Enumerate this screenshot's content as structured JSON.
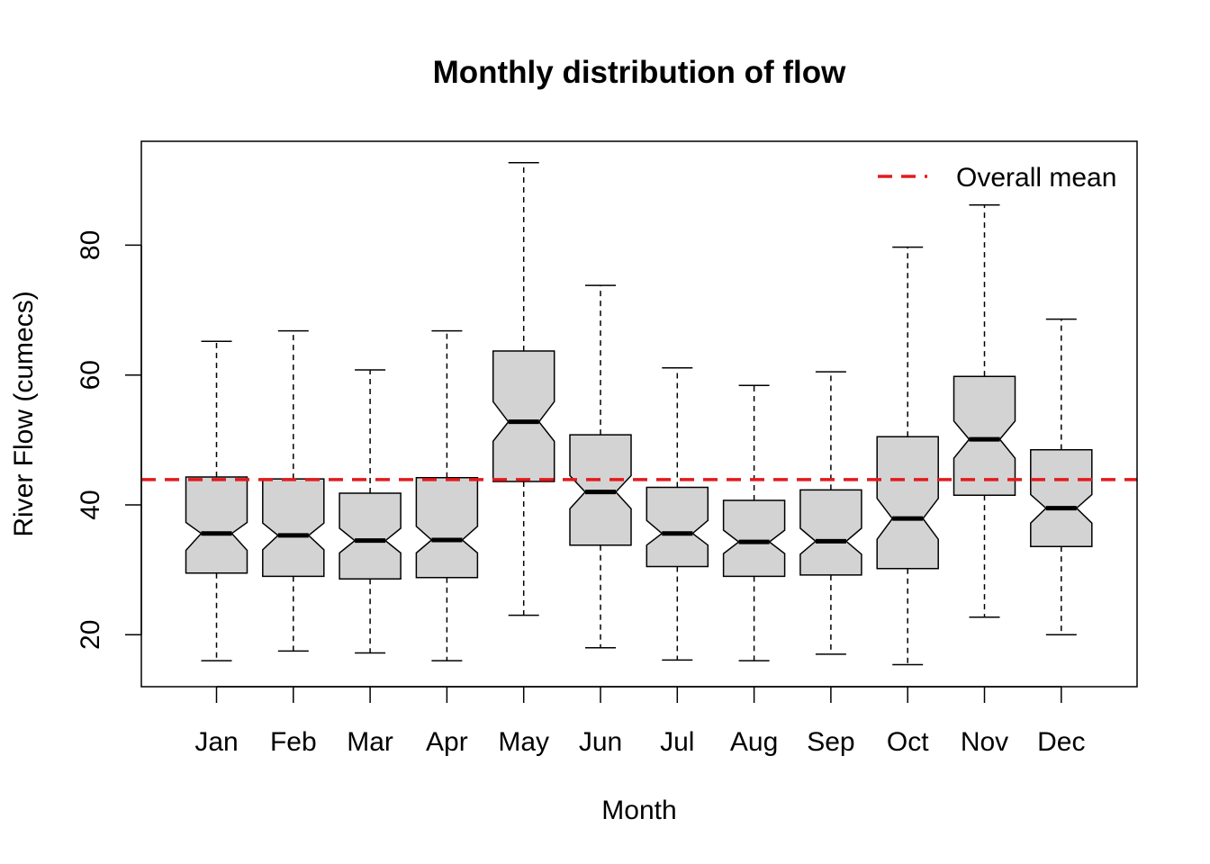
{
  "chart_data": {
    "type": "boxplot",
    "title": "Monthly distribution of flow",
    "xlabel": "Month",
    "ylabel": "River Flow (cumecs)",
    "ylim": [
      12,
      96
    ],
    "yticks": [
      20,
      40,
      60,
      80
    ],
    "categories": [
      "Jan",
      "Feb",
      "Mar",
      "Apr",
      "May",
      "Jun",
      "Jul",
      "Aug",
      "Sep",
      "Oct",
      "Nov",
      "Dec"
    ],
    "boxes": [
      {
        "min": 16.0,
        "q1": 29.5,
        "median": 35.6,
        "q3": 44.3,
        "max": 65.2,
        "notch_low": 33.0,
        "notch_high": 37.3
      },
      {
        "min": 17.5,
        "q1": 29.0,
        "median": 35.3,
        "q3": 44.0,
        "max": 66.8,
        "notch_low": 33.1,
        "notch_high": 37.2
      },
      {
        "min": 17.2,
        "q1": 28.6,
        "median": 34.5,
        "q3": 41.8,
        "max": 60.8,
        "notch_low": 32.6,
        "notch_high": 36.4
      },
      {
        "min": 16.0,
        "q1": 28.8,
        "median": 34.6,
        "q3": 44.2,
        "max": 66.8,
        "notch_low": 32.6,
        "notch_high": 36.7
      },
      {
        "min": 23.0,
        "q1": 43.6,
        "median": 52.8,
        "q3": 63.7,
        "max": 92.7,
        "notch_low": 49.8,
        "notch_high": 55.9
      },
      {
        "min": 18.0,
        "q1": 33.8,
        "median": 42.0,
        "q3": 50.8,
        "max": 73.8,
        "notch_low": 39.4,
        "notch_high": 44.5
      },
      {
        "min": 16.1,
        "q1": 30.5,
        "median": 35.6,
        "q3": 42.7,
        "max": 61.1,
        "notch_low": 33.8,
        "notch_high": 37.6
      },
      {
        "min": 16.0,
        "q1": 29.0,
        "median": 34.3,
        "q3": 40.7,
        "max": 58.4,
        "notch_low": 32.5,
        "notch_high": 36.1
      },
      {
        "min": 17.0,
        "q1": 29.2,
        "median": 34.4,
        "q3": 42.3,
        "max": 60.5,
        "notch_low": 32.4,
        "notch_high": 36.4
      },
      {
        "min": 15.4,
        "q1": 30.2,
        "median": 37.9,
        "q3": 50.5,
        "max": 79.7,
        "notch_low": 34.7,
        "notch_high": 41.0
      },
      {
        "min": 22.7,
        "q1": 41.5,
        "median": 50.1,
        "q3": 59.8,
        "max": 86.2,
        "notch_low": 47.2,
        "notch_high": 52.9
      },
      {
        "min": 20.0,
        "q1": 33.6,
        "median": 39.5,
        "q3": 48.5,
        "max": 68.6,
        "notch_low": 37.2,
        "notch_high": 41.6
      }
    ],
    "reference_line": {
      "label": "Overall mean",
      "value": 43.9,
      "color": "#e31a1c",
      "style": "dashed"
    },
    "box_fill": "#d3d3d3",
    "legend_position": "top-right",
    "grid": false
  }
}
